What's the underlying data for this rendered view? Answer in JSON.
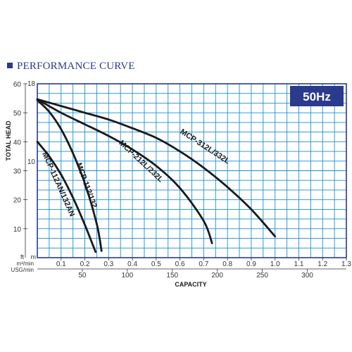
{
  "chart_data": {
    "type": "line",
    "title": "PERFORMANCE CURVE",
    "badge": "50Hz",
    "xlabel": "CAPACITY",
    "ylabel": "TOTAL HEAD",
    "x_unit_primary": "m³/min",
    "x_unit_secondary": "USG/min",
    "y_unit_left": "ft",
    "y_unit_right": "m",
    "xlim": [
      0,
      1.3
    ],
    "ylim_m": [
      0,
      18
    ],
    "ylim_ft": [
      0,
      60
    ],
    "x_ticks": [
      0.1,
      0.2,
      0.3,
      0.4,
      0.5,
      0.6,
      0.7,
      0.8,
      0.9,
      1.0,
      1.1,
      1.2,
      1.3
    ],
    "x_tick_labels": [
      "0.1",
      "0.2",
      "0.3",
      "0.4",
      "0.5",
      "0.6",
      "0.7",
      "0.8",
      "0.9",
      "1.0",
      "1.1",
      "1.2",
      "1.3"
    ],
    "usg_ticks": [
      50,
      100,
      150,
      200,
      250,
      300
    ],
    "usg_tick_labels": [
      "50",
      "100",
      "150",
      "200",
      "250",
      "300"
    ],
    "ft_ticks": [
      10,
      20,
      30,
      40,
      50,
      60
    ],
    "ft_tick_labels": [
      "10",
      "20",
      "30",
      "40",
      "50",
      "60"
    ],
    "m_ticks": [
      10,
      18
    ],
    "m_tick_labels": [
      "10",
      "18"
    ],
    "grid": true,
    "series": [
      {
        "name": "MCP-112AN/132AN",
        "x": [
          0.0,
          0.05,
          0.1,
          0.15,
          0.2,
          0.245
        ],
        "y": [
          12.0,
          10.5,
          8.6,
          6.2,
          3.4,
          0.6
        ]
      },
      {
        "name": "MCP-112/132",
        "x": [
          0.0,
          0.05,
          0.1,
          0.15,
          0.2,
          0.25,
          0.27
        ],
        "y": [
          16.3,
          15.1,
          13.3,
          10.8,
          7.7,
          3.5,
          0.7
        ]
      },
      {
        "name": "MCP-212L/232L",
        "x": [
          0.0,
          0.1,
          0.2,
          0.3,
          0.4,
          0.5,
          0.6,
          0.7,
          0.735
        ],
        "y": [
          16.4,
          15.0,
          13.8,
          12.6,
          11.2,
          9.5,
          7.2,
          3.8,
          1.5
        ]
      },
      {
        "name": "MCP-312L/332L",
        "x": [
          0.0,
          0.1,
          0.2,
          0.3,
          0.4,
          0.5,
          0.6,
          0.7,
          0.8,
          0.9,
          1.0
        ],
        "y": [
          16.4,
          15.7,
          15.0,
          14.3,
          13.4,
          12.4,
          11.0,
          9.3,
          7.3,
          5.0,
          2.2
        ]
      }
    ],
    "curve_color": "#1a1a1a",
    "grid_color": "#1a8fd0",
    "frame_color": "#2a3a8c",
    "badge_color": "#2a3a8c",
    "title_color": "#2a3a8c"
  }
}
